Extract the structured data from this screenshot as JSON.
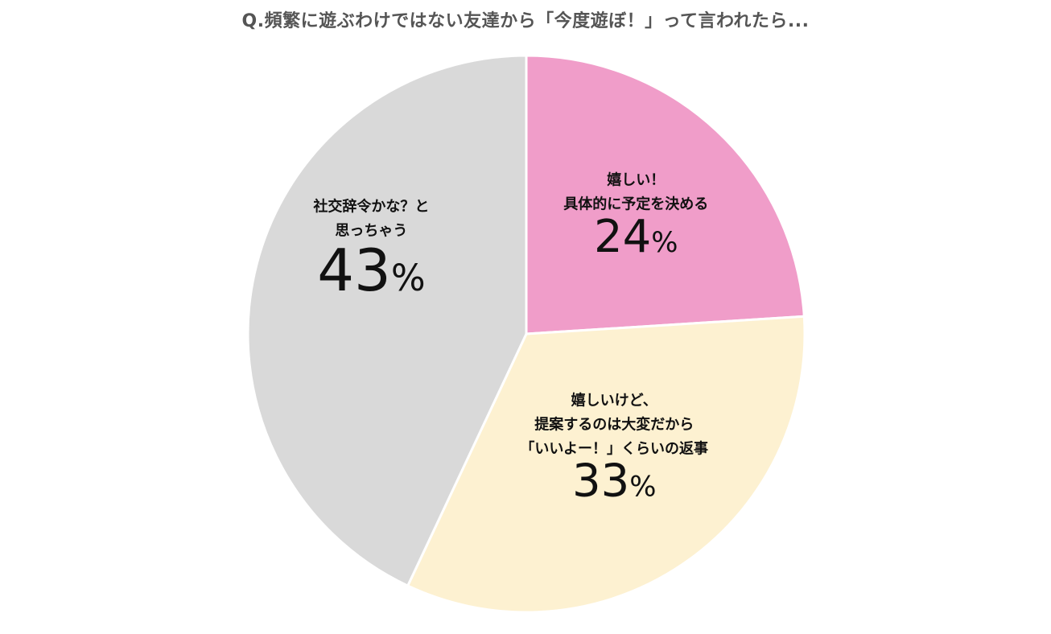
{
  "chart_data": {
    "type": "pie",
    "title": "Q.頻繁に遊ぶわけではない友達から「今度遊ぼ！」って言われたら...",
    "slices": [
      {
        "label_lines": [
          "嬉しい！",
          "具体的に予定を決める"
        ],
        "value": 24,
        "value_label": "24",
        "unit": "%",
        "color": "#F09DC9"
      },
      {
        "label_lines": [
          "嬉しいけど、",
          "提案するのは大変だから",
          "「いいよー！」くらいの返事"
        ],
        "value": 33,
        "value_label": "33",
        "unit": "%",
        "color": "#FDF1D1"
      },
      {
        "label_lines": [
          "社交辞令かな？と",
          "思っちゃう"
        ],
        "value": 43,
        "value_label": "43",
        "unit": "%",
        "color": "#D9D9D9"
      }
    ],
    "start_angle": "12 o'clock",
    "direction": "clockwise",
    "legend": "none"
  }
}
